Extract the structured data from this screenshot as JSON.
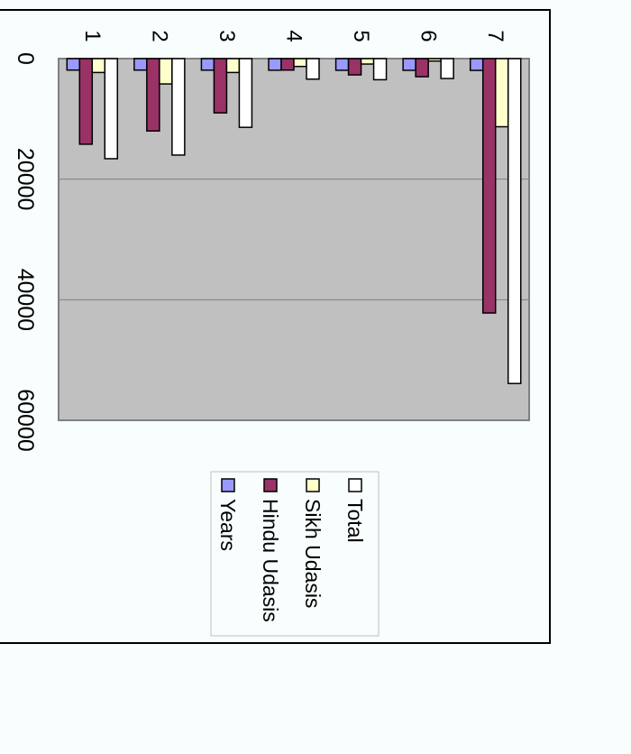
{
  "chart_data": {
    "type": "bar",
    "orientation": "rotated-90-clockwise",
    "categories": [
      "1",
      "2",
      "3",
      "4",
      "5",
      "6",
      "7"
    ],
    "series": [
      {
        "name": "Years",
        "color": "#9999ff",
        "values": [
          1900,
          1901,
          1911,
          1921,
          1931,
          1941,
          1951
        ]
      },
      {
        "name": "Hindu Udasis",
        "color": "#993366",
        "values": [
          14200,
          12000,
          9000,
          1900,
          2700,
          3000,
          42200
        ]
      },
      {
        "name": "Sikh Udasis",
        "color": "#ffffcc",
        "values": [
          2300,
          4200,
          2300,
          1300,
          900,
          400,
          11300
        ]
      },
      {
        "name": "Total",
        "color": "#ffffff",
        "values": [
          16600,
          16000,
          11400,
          3400,
          3500,
          3300,
          53900
        ]
      }
    ],
    "value_axis": {
      "min": 0,
      "max": 60000,
      "ticks": [
        0,
        20000,
        40000,
        60000
      ]
    },
    "legend": {
      "placement": "right",
      "order": [
        "Total",
        "Sikh Udasis",
        "Hindu Udasis",
        "Years"
      ]
    },
    "grid": true,
    "plot_background": "#c0c0c0",
    "page_background": "#f7fefd"
  }
}
